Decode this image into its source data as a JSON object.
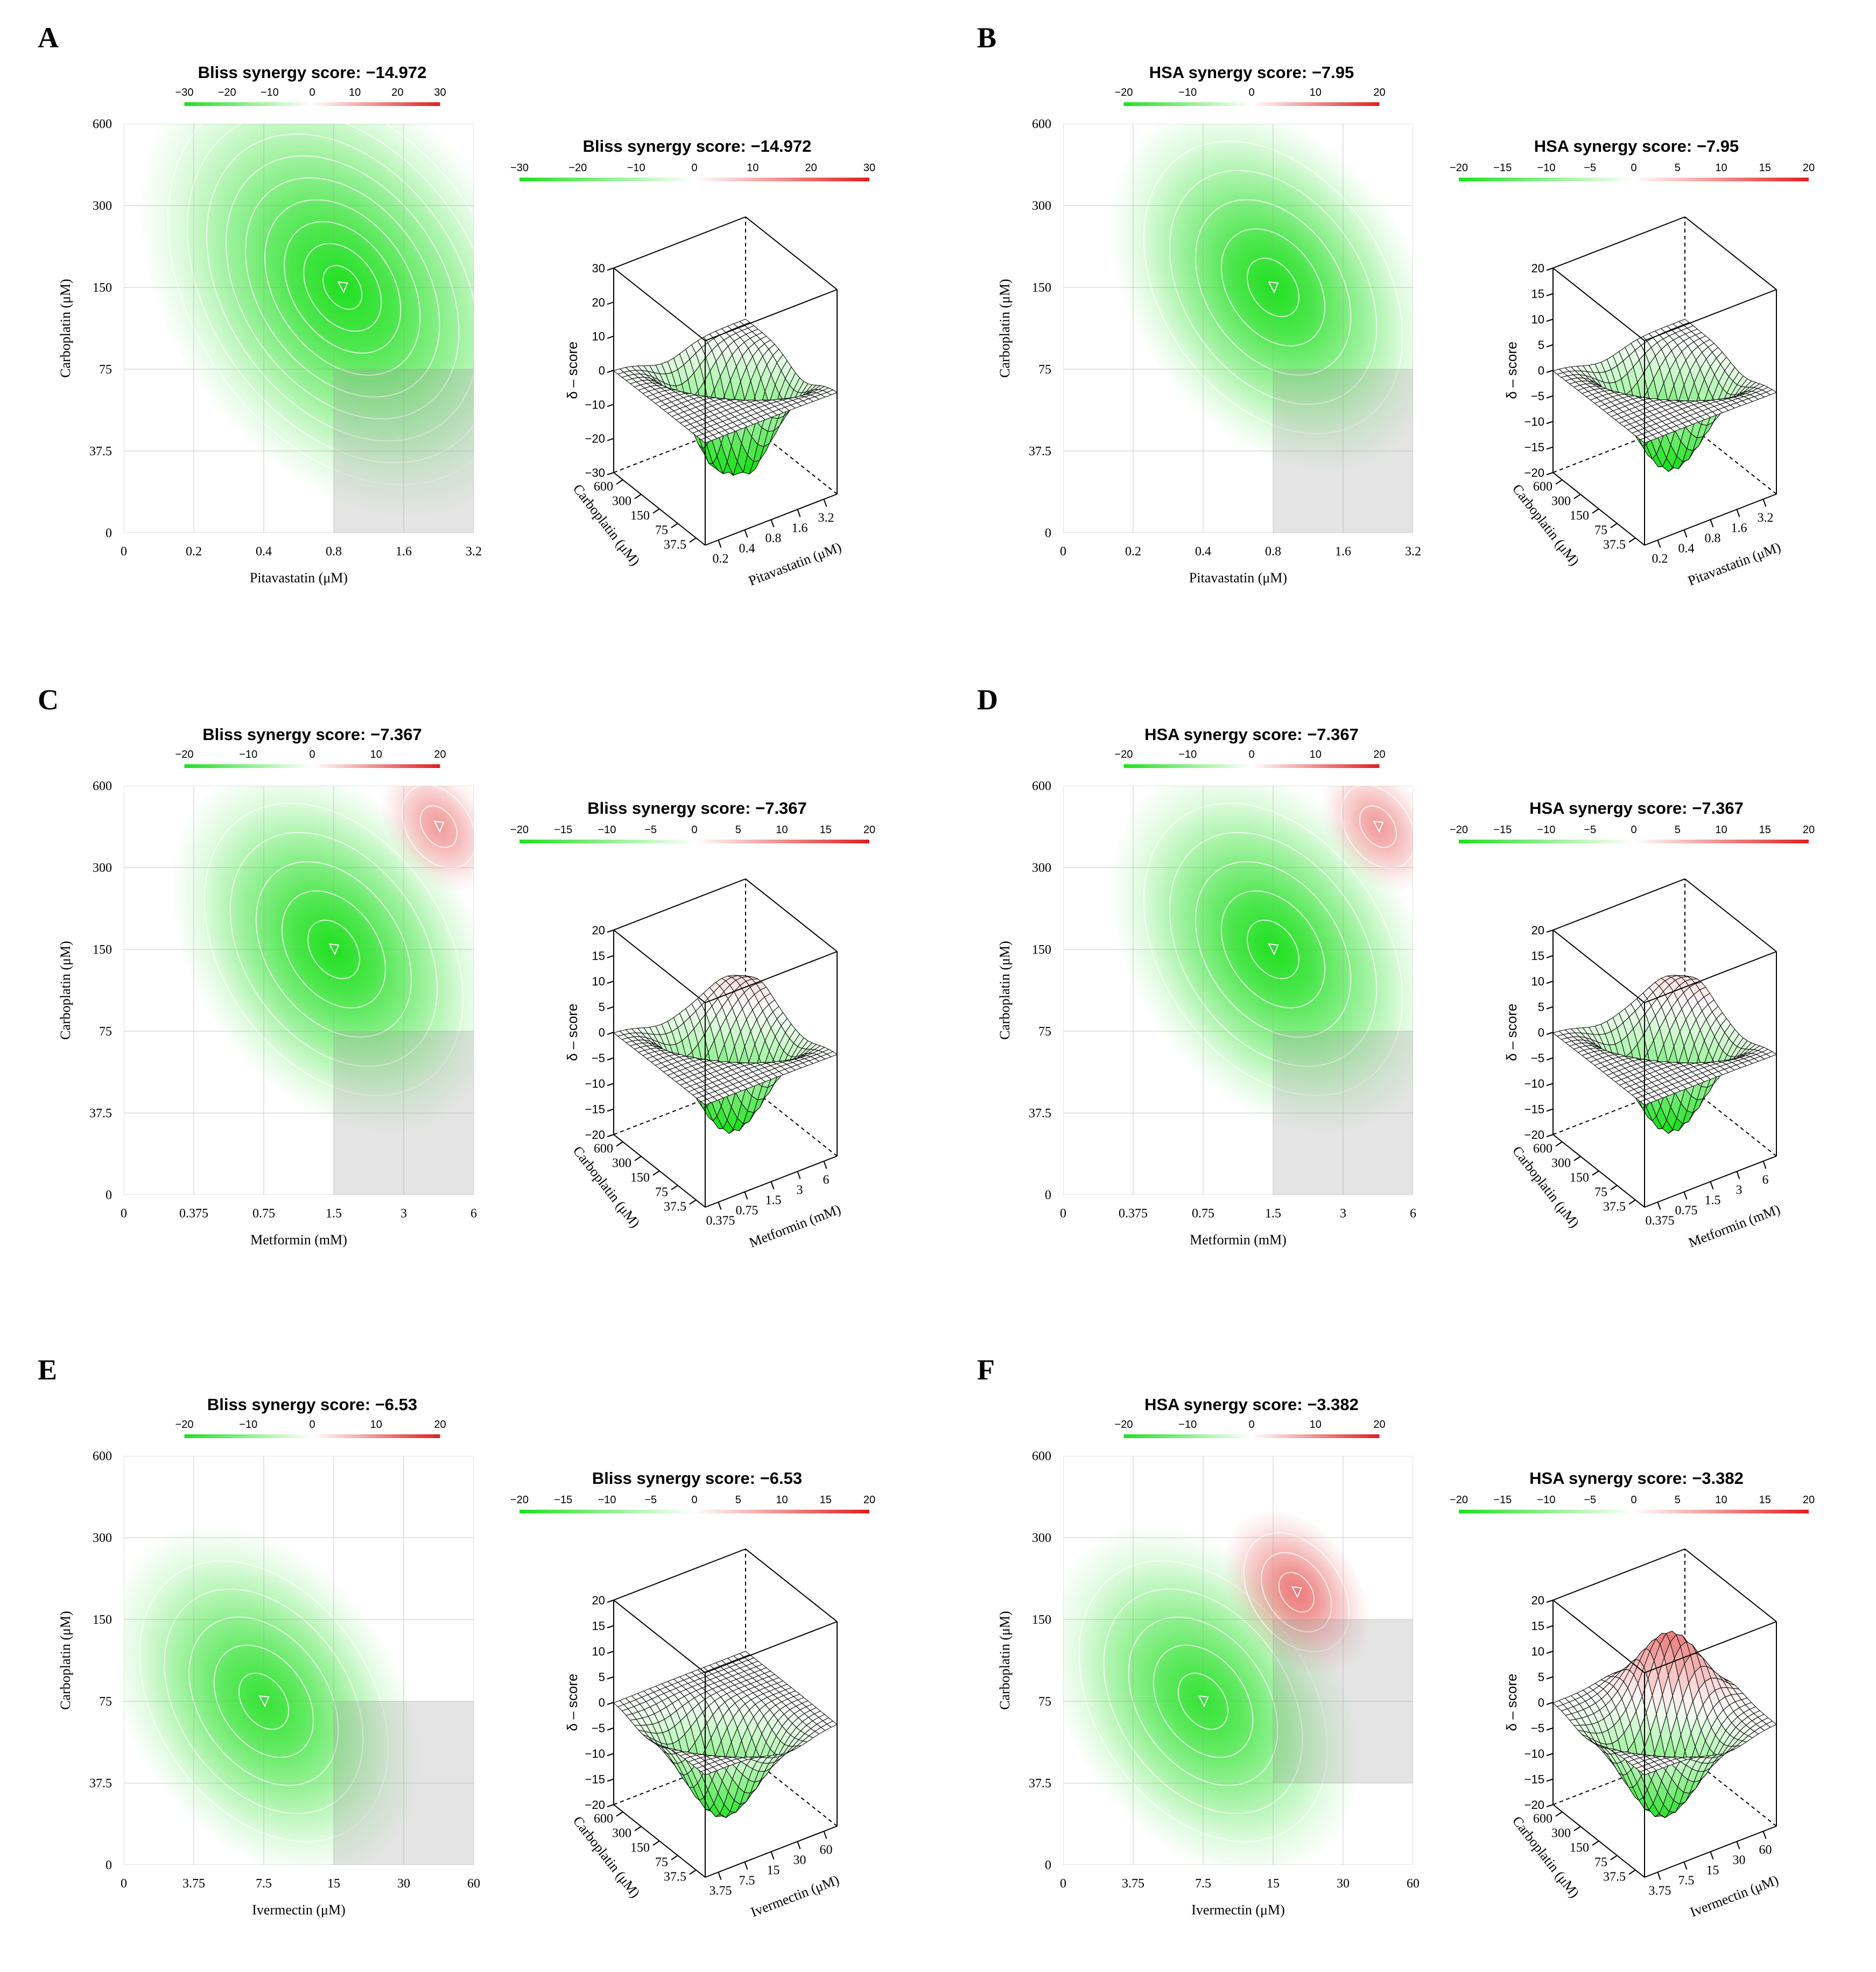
{
  "figure": {
    "description_free": true
  },
  "chart_data": [
    {
      "panel": "A",
      "type": "heatmap",
      "title": "Bliss synergy score: −14.972",
      "legend_ticks": [
        "−30",
        "−20",
        "−10",
        "0",
        "10",
        "20",
        "30"
      ],
      "legend_range": [
        -30,
        30
      ],
      "xlabel": "Pitavastatin (μM)",
      "ylabel": "Carboplatin (μM)",
      "x_ticks": [
        "0",
        "0.2",
        "0.4",
        "0.8",
        "1.6",
        "3.2"
      ],
      "y_ticks": [
        "0",
        "37.5",
        "75",
        "150",
        "300",
        "600"
      ],
      "surface_title": "Bliss synergy score: −14.972",
      "surface_legend_ticks": [
        "−30",
        "−20",
        "−10",
        "0",
        "10",
        "20",
        "30"
      ],
      "z_ticks": [
        "30",
        "20",
        "10",
        "0",
        "−10",
        "−20",
        "−30"
      ],
      "zlabel": "δ – score",
      "zlim": [
        -30,
        30
      ],
      "surface_x_ticks": [
        "0.2",
        "0.4",
        "0.8",
        "1.6",
        "3.2"
      ],
      "surface_y_ticks": [
        "600",
        "300",
        "150",
        "75",
        "37.5"
      ],
      "hotspots": [
        {
          "x": 0.9,
          "y": 150,
          "value": -35
        }
      ],
      "highlight_region": {
        "x_from": "0.8",
        "x_to": "3.2",
        "y_from": "0",
        "y_to": "75"
      }
    },
    {
      "panel": "B",
      "type": "heatmap",
      "title": "HSA synergy score: −7.95",
      "legend_ticks": [
        "−20",
        "−10",
        "0",
        "10",
        "20"
      ],
      "legend_range": [
        -20,
        20
      ],
      "xlabel": "Pitavastatin (μM)",
      "ylabel": "Carboplatin (μM)",
      "x_ticks": [
        "0",
        "0.2",
        "0.4",
        "0.8",
        "1.6",
        "3.2"
      ],
      "y_ticks": [
        "0",
        "37.5",
        "75",
        "150",
        "300",
        "600"
      ],
      "surface_title": "HSA synergy score: −7.95",
      "surface_legend_ticks": [
        "−20",
        "−15",
        "−10",
        "−5",
        "0",
        "5",
        "10",
        "15",
        "20"
      ],
      "z_ticks": [
        "20",
        "15",
        "10",
        "5",
        "0",
        "−5",
        "−10",
        "−15",
        "−20"
      ],
      "zlabel": "δ – score",
      "zlim": [
        -20,
        20
      ],
      "surface_x_ticks": [
        "0.2",
        "0.4",
        "0.8",
        "1.6",
        "3.2"
      ],
      "surface_y_ticks": [
        "600",
        "300",
        "150",
        "75",
        "37.5"
      ],
      "hotspots": [
        {
          "x": 0.8,
          "y": 150,
          "value": -20
        }
      ],
      "highlight_region": {
        "x_from": "0.8",
        "x_to": "3.2",
        "y_from": "0",
        "y_to": "75"
      }
    },
    {
      "panel": "C",
      "type": "heatmap",
      "title": "Bliss synergy score: −7.367",
      "legend_ticks": [
        "−20",
        "−10",
        "0",
        "10",
        "20"
      ],
      "legend_range": [
        -20,
        20
      ],
      "xlabel": "Metformin (mM)",
      "ylabel": "Carboplatin (μM)",
      "x_ticks": [
        "0",
        "0.375",
        "0.75",
        "1.5",
        "3",
        "6"
      ],
      "y_ticks": [
        "0",
        "37.5",
        "75",
        "150",
        "300",
        "600"
      ],
      "surface_title": "Bliss synergy score: −7.367",
      "surface_legend_ticks": [
        "−20",
        "−15",
        "−10",
        "−5",
        "0",
        "5",
        "10",
        "15",
        "20"
      ],
      "z_ticks": [
        "20",
        "15",
        "10",
        "5",
        "0",
        "−5",
        "−10",
        "−15",
        "−20"
      ],
      "zlabel": "δ – score",
      "zlim": [
        -20,
        20
      ],
      "surface_x_ticks": [
        "0.375",
        "0.75",
        "1.5",
        "3",
        "6"
      ],
      "surface_y_ticks": [
        "600",
        "300",
        "150",
        "75",
        "37.5"
      ],
      "hotspots": [
        {
          "x": 1.5,
          "y": 150,
          "value": -20
        },
        {
          "x": 4.5,
          "y": 450,
          "value": 3
        }
      ],
      "highlight_region": {
        "x_from": "1.5",
        "x_to": "6",
        "y_from": "0",
        "y_to": "75"
      }
    },
    {
      "panel": "D",
      "type": "heatmap",
      "title": "HSA synergy score: −7.367",
      "legend_ticks": [
        "−20",
        "−10",
        "0",
        "10",
        "20"
      ],
      "legend_range": [
        -20,
        20
      ],
      "xlabel": "Metformin (mM)",
      "ylabel": "Carboplatin (μM)",
      "x_ticks": [
        "0",
        "0.375",
        "0.75",
        "1.5",
        "3",
        "6"
      ],
      "y_ticks": [
        "0",
        "37.5",
        "75",
        "150",
        "300",
        "600"
      ],
      "surface_title": "HSA synergy score: −7.367",
      "surface_legend_ticks": [
        "−20",
        "−15",
        "−10",
        "−5",
        "0",
        "5",
        "10",
        "15",
        "20"
      ],
      "z_ticks": [
        "20",
        "15",
        "10",
        "5",
        "0",
        "−5",
        "−10",
        "−15",
        "−20"
      ],
      "zlabel": "δ – score",
      "zlim": [
        -20,
        20
      ],
      "surface_x_ticks": [
        "0.375",
        "0.75",
        "1.5",
        "3",
        "6"
      ],
      "surface_y_ticks": [
        "600",
        "300",
        "150",
        "75",
        "37.5"
      ],
      "hotspots": [
        {
          "x": 1.5,
          "y": 150,
          "value": -20
        },
        {
          "x": 4.5,
          "y": 450,
          "value": 3
        }
      ],
      "highlight_region": {
        "x_from": "1.5",
        "x_to": "6",
        "y_from": "0",
        "y_to": "75"
      }
    },
    {
      "panel": "E",
      "type": "heatmap",
      "title": "Bliss synergy score: −6.53",
      "legend_ticks": [
        "−20",
        "−10",
        "0",
        "10",
        "20"
      ],
      "legend_range": [
        -20,
        20
      ],
      "xlabel": "Ivermectin (μM)",
      "ylabel": "Carboplatin (μM)",
      "x_ticks": [
        "0",
        "3.75",
        "7.5",
        "15",
        "30",
        "60"
      ],
      "y_ticks": [
        "0",
        "37.5",
        "75",
        "150",
        "300",
        "600"
      ],
      "surface_title": "Bliss synergy score: −6.53",
      "surface_legend_ticks": [
        "−20",
        "−15",
        "−10",
        "−5",
        "0",
        "5",
        "10",
        "15",
        "20"
      ],
      "z_ticks": [
        "20",
        "15",
        "10",
        "5",
        "0",
        "−5",
        "−10",
        "−15",
        "−20"
      ],
      "zlabel": "δ – score",
      "zlim": [
        -20,
        20
      ],
      "surface_x_ticks": [
        "3.75",
        "7.5",
        "15",
        "30",
        "60"
      ],
      "surface_y_ticks": [
        "600",
        "300",
        "150",
        "75",
        "37.5"
      ],
      "hotspots": [
        {
          "x": 7.5,
          "y": 75,
          "value": -18
        }
      ],
      "highlight_region": {
        "x_from": "15",
        "x_to": "60",
        "y_from": "0",
        "y_to": "75"
      }
    },
    {
      "panel": "F",
      "type": "heatmap",
      "title": "HSA synergy score: −3.382",
      "legend_ticks": [
        "−20",
        "−10",
        "0",
        "10",
        "20"
      ],
      "legend_range": [
        -20,
        20
      ],
      "xlabel": "Ivermectin (μM)",
      "ylabel": "Carboplatin (μM)",
      "x_ticks": [
        "0",
        "3.75",
        "7.5",
        "15",
        "30",
        "60"
      ],
      "y_ticks": [
        "0",
        "37.5",
        "75",
        "150",
        "300",
        "600"
      ],
      "surface_title": "HSA synergy score: −3.382",
      "surface_legend_ticks": [
        "−20",
        "−15",
        "−10",
        "−5",
        "0",
        "5",
        "10",
        "15",
        "20"
      ],
      "z_ticks": [
        "20",
        "15",
        "10",
        "5",
        "0",
        "−5",
        "−10",
        "−15",
        "−20"
      ],
      "zlabel": "δ – score",
      "zlim": [
        -20,
        20
      ],
      "surface_x_ticks": [
        "3.75",
        "7.5",
        "15",
        "30",
        "60"
      ],
      "surface_y_ticks": [
        "600",
        "300",
        "150",
        "75",
        "37.5"
      ],
      "hotspots": [
        {
          "x": 7.5,
          "y": 75,
          "value": -18
        },
        {
          "x": 20,
          "y": 200,
          "value": 12
        }
      ],
      "highlight_region": {
        "x_from": "15",
        "x_to": "60",
        "y_from": "37.5",
        "y_to": "150"
      }
    }
  ],
  "colors": {
    "negative": "#1fe01f",
    "positive": "#e01f1f",
    "neutral": "#ffffff",
    "highlight": "#9e9e9e"
  }
}
